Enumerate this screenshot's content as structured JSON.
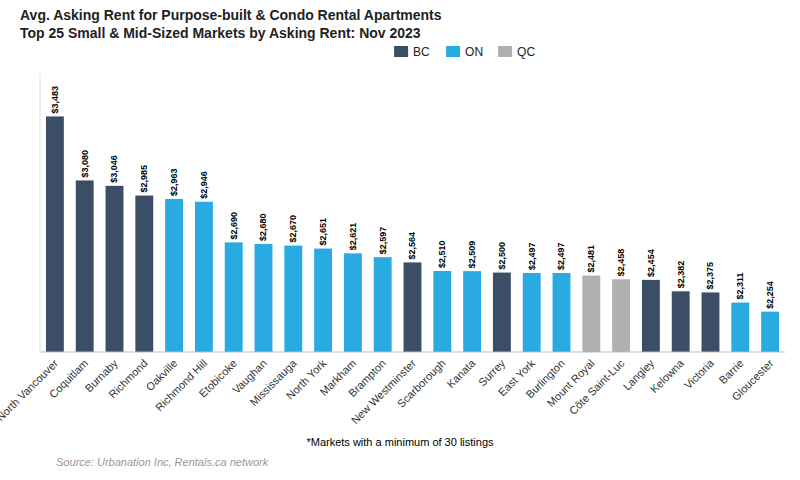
{
  "chart_data": {
    "type": "bar",
    "title": "Avg. Asking Rent for Purpose-built & Condo Rental Apartments",
    "subtitle": "Top 25 Small & Mid-Sized Markets by Asking Rent: Nov 2023",
    "annotations": [
      "*Markets with a minimum of 30 listings",
      "Source: Urbanation Inc, Rentals.ca network"
    ],
    "categories": [
      "North Vancouver",
      "Coquitlam",
      "Burnaby",
      "Richmond",
      "Oakville",
      "Richmond Hill",
      "Etobicoke",
      "Vaughan",
      "Mississauga",
      "North York",
      "Markham",
      "Brampton",
      "New Westminster",
      "Scarborough",
      "Kanata",
      "Surrey",
      "East York",
      "Burlington",
      "Mount Royal",
      "Côte Saint-Luc",
      "Langley",
      "Kelowna",
      "Victoria",
      "Barrie",
      "Gloucester"
    ],
    "series": [
      {
        "name": "BC",
        "color": "#3c4e65",
        "values": [
          3483,
          3080,
          3046,
          2985,
          null,
          null,
          null,
          null,
          null,
          null,
          null,
          null,
          2564,
          null,
          null,
          2500,
          null,
          null,
          null,
          null,
          2454,
          2382,
          2375,
          null,
          null
        ],
        "value_labels": [
          "$3,483",
          "$3,080",
          "$3,046",
          "$2,985",
          null,
          null,
          null,
          null,
          null,
          null,
          null,
          null,
          "$2,564",
          null,
          null,
          "$2,500",
          null,
          null,
          null,
          null,
          "$2,454",
          "$2,382",
          "$2,375",
          null,
          null
        ]
      },
      {
        "name": "ON",
        "color": "#29abe2",
        "values": [
          null,
          null,
          null,
          null,
          2963,
          2946,
          2690,
          2680,
          2670,
          2651,
          2621,
          2597,
          null,
          2510,
          2509,
          null,
          2497,
          2497,
          null,
          null,
          null,
          null,
          null,
          2311,
          2254
        ],
        "value_labels": [
          null,
          null,
          null,
          null,
          "$2,963",
          "$2,946",
          "$2,690",
          "$2,680",
          "$2,670",
          "$2,651",
          "$2,621",
          "$2,597",
          null,
          "$2,510",
          "$2,509",
          null,
          "$2,497",
          "$2,497",
          null,
          null,
          null,
          null,
          null,
          "$2,311",
          "$2,254"
        ]
      },
      {
        "name": "QC",
        "color": "#b0b0b0",
        "values": [
          null,
          null,
          null,
          null,
          null,
          null,
          null,
          null,
          null,
          null,
          null,
          null,
          null,
          null,
          null,
          null,
          null,
          null,
          2481,
          2458,
          null,
          null,
          null,
          null,
          null
        ],
        "value_labels": [
          null,
          null,
          null,
          null,
          null,
          null,
          null,
          null,
          null,
          null,
          null,
          null,
          null,
          null,
          null,
          null,
          null,
          null,
          "$2,481",
          "$2,458",
          null,
          null,
          null,
          null,
          null
        ]
      }
    ],
    "stacked": true,
    "ylim": [
      2000,
      3750
    ],
    "grid": false,
    "legend": "top",
    "data_labels": true,
    "tick_labels": "x"
  }
}
